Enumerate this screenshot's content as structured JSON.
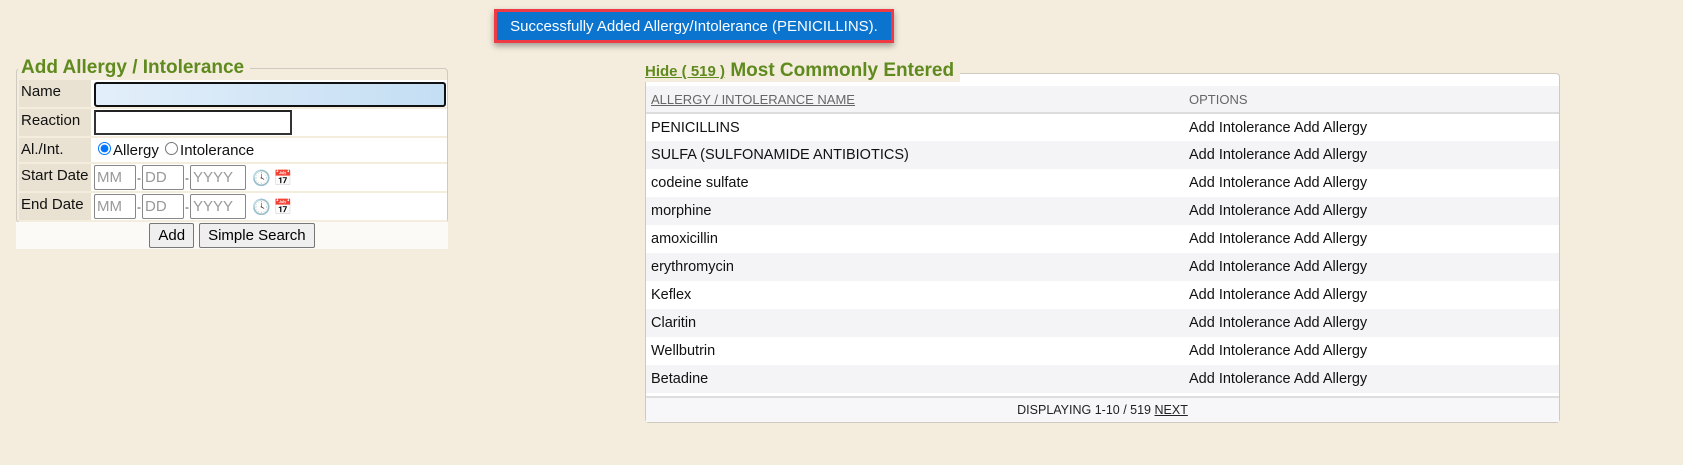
{
  "toast": "Successfully Added Allergy/Intolerance (PENICILLINS).",
  "form": {
    "title": "Add Allergy / Intolerance",
    "name_label": "Name",
    "name_value": "",
    "reaction_label": "Reaction",
    "type_label": "Al./Int.",
    "type_options": [
      "Allergy",
      "Intolerance"
    ],
    "type_selected": "Allergy",
    "start_label": "Start Date",
    "end_label": "End Date",
    "mm": "MM",
    "dd": "DD",
    "yyyy": "YYYY",
    "add_button": "Add",
    "search_button": "Simple Search"
  },
  "common": {
    "hide_link": "Hide ( 519 )",
    "title": "Most Commonly Entered",
    "col_name": "ALLERGY / INTOLERANCE NAME",
    "col_options": "OPTIONS",
    "add_intolerance": "Add Intolerance",
    "add_allergy": "Add Allergy",
    "rows": [
      "PENICILLINS",
      "SULFA (SULFONAMIDE ANTIBIOTICS)",
      "codeine sulfate",
      "morphine",
      "amoxicillin",
      "erythromycin",
      "Keflex",
      "Claritin",
      "Wellbutrin",
      "Betadine"
    ],
    "footer": "DISPLAYING 1-10 / 519",
    "next": "NEXT"
  },
  "colors": {
    "background": "#f4ecdd",
    "accent_green": "#5f8a1e",
    "toast_bg": "#0a74cf",
    "toast_border": "#ee3a44"
  }
}
